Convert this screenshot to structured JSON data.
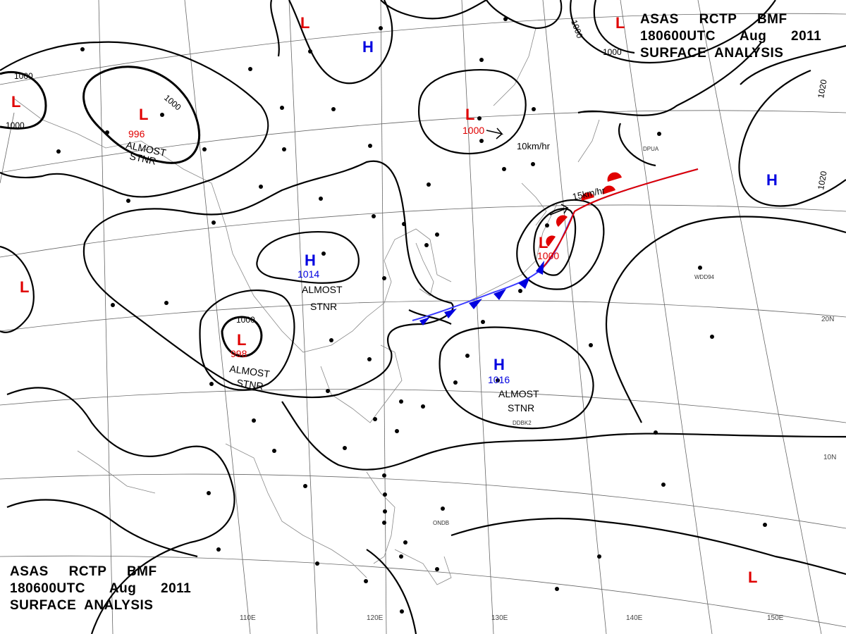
{
  "header": {
    "line1": "ASAS     RCTP     BMF",
    "line2": "180600UTC      Aug      2011",
    "line3": "SURFACE  ANALYSIS"
  },
  "lon_labels": [
    "110E",
    "120E",
    "130E",
    "140E",
    "150E"
  ],
  "lat_labels": [
    "20N",
    "10N"
  ],
  "isobar_labels": [
    "1000",
    "1000",
    "1000",
    "1000",
    "1000",
    "1020",
    "1020"
  ],
  "systems": [
    {
      "type": "L",
      "pressure": "996",
      "note1": "ALMOST",
      "note2": "STNR"
    },
    {
      "type": "L",
      "pressure": "998",
      "note1": "ALMOST",
      "note2": "STNR"
    },
    {
      "type": "H",
      "pressure": "1014",
      "note1": "ALMOST",
      "note2": "STNR"
    },
    {
      "type": "H",
      "pressure": "1016",
      "note1": "ALMOST",
      "note2": "STNR"
    },
    {
      "type": "L",
      "pressure": "1000",
      "motion": "10km/hr"
    },
    {
      "type": "L",
      "pressure": "1000",
      "motion": "15km/hr"
    },
    {
      "type": "H"
    },
    {
      "type": "H"
    },
    {
      "type": "L"
    },
    {
      "type": "L"
    },
    {
      "type": "L"
    },
    {
      "type": "L"
    }
  ],
  "stations": [
    "DPUA",
    "WDD94",
    "ONDB",
    "DDBK2"
  ],
  "colors": {
    "low": "#e00000",
    "high": "#0000e0",
    "isobar": "#000000",
    "grid": "#555555",
    "coast": "#777777"
  }
}
